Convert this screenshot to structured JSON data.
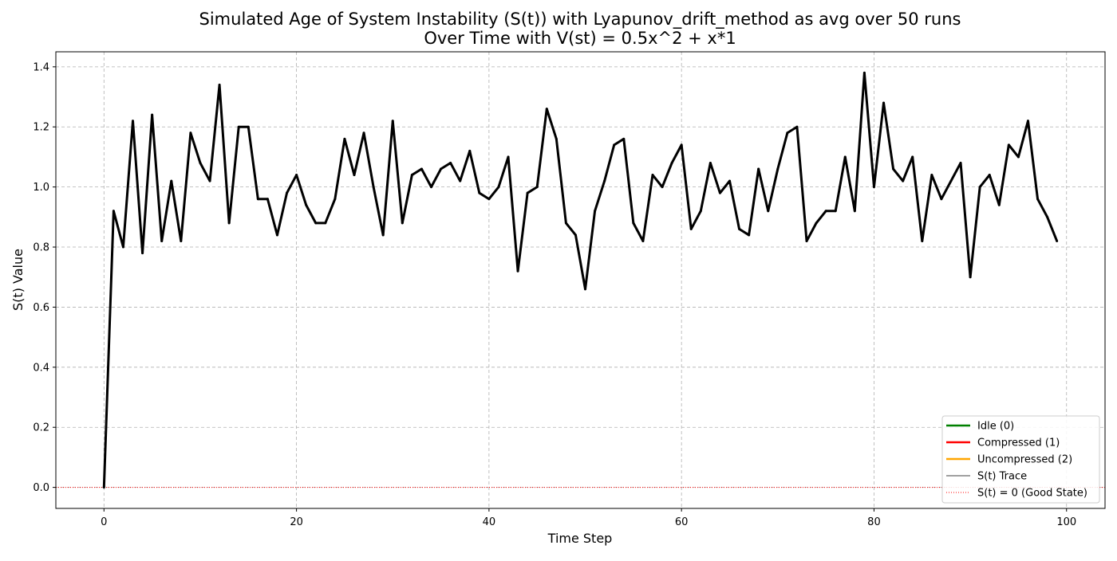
{
  "chart_data": {
    "type": "line",
    "title_line1": "Simulated Age of System Instability (S(t)) with Lyapunov_drift_method as avg over 50 runs",
    "title_line2": "Over Time with V(st) = 0.5x^2 + x*1",
    "xlabel": "Time Step",
    "ylabel": "S(t) Value",
    "xlim": [
      -5,
      104
    ],
    "ylim": [
      -0.07,
      1.45
    ],
    "x_ticks": [
      0,
      20,
      40,
      60,
      80,
      100
    ],
    "y_ticks": [
      0.0,
      0.2,
      0.4,
      0.6,
      0.8,
      1.0,
      1.2,
      1.4
    ],
    "y_tick_labels": [
      "0.0",
      "0.2",
      "0.4",
      "0.6",
      "0.8",
      "1.0",
      "1.2",
      "1.4"
    ],
    "grid": true,
    "legend_position": "bottom-right",
    "series": [
      {
        "name": "S(t) Trace",
        "color": "#000000",
        "x": [
          0,
          1,
          2,
          3,
          4,
          5,
          6,
          7,
          8,
          9,
          10,
          11,
          12,
          13,
          14,
          15,
          16,
          17,
          18,
          19,
          20,
          21,
          22,
          23,
          24,
          25,
          26,
          27,
          28,
          29,
          30,
          31,
          32,
          33,
          34,
          35,
          36,
          37,
          38,
          39,
          40,
          41,
          42,
          43,
          44,
          45,
          46,
          47,
          48,
          49,
          50,
          51,
          52,
          53,
          54,
          55,
          56,
          57,
          58,
          59,
          60,
          61,
          62,
          63,
          64,
          65,
          66,
          67,
          68,
          69,
          70,
          71,
          72,
          73,
          74,
          75,
          76,
          77,
          78,
          79,
          80,
          81,
          82,
          83,
          84,
          85,
          86,
          87,
          88,
          89,
          90,
          91,
          92,
          93,
          94,
          95,
          96,
          97,
          98,
          99
        ],
        "values": [
          0.0,
          0.92,
          0.8,
          1.22,
          0.78,
          1.24,
          0.82,
          1.02,
          0.82,
          1.18,
          1.08,
          1.02,
          1.34,
          0.88,
          1.2,
          1.2,
          0.96,
          0.96,
          0.84,
          0.98,
          1.04,
          0.94,
          0.88,
          0.88,
          0.96,
          1.16,
          1.04,
          1.18,
          1.0,
          0.84,
          1.22,
          0.88,
          1.04,
          1.06,
          1.0,
          1.06,
          1.08,
          1.02,
          1.12,
          0.98,
          0.96,
          1.0,
          1.1,
          0.72,
          0.98,
          1.0,
          1.26,
          1.16,
          0.88,
          0.84,
          0.66,
          0.92,
          1.02,
          1.14,
          1.16,
          0.88,
          0.82,
          1.04,
          1.0,
          1.08,
          1.14,
          0.86,
          0.92,
          1.08,
          0.98,
          1.02,
          0.86,
          0.84,
          1.06,
          0.92,
          1.06,
          1.18,
          1.2,
          0.82,
          0.88,
          0.92,
          0.92,
          1.1,
          0.92,
          1.38,
          1.0,
          1.28,
          1.06,
          1.02,
          1.1,
          0.82,
          1.04,
          0.96,
          1.02,
          1.08,
          0.7,
          1.0,
          1.04,
          0.94,
          1.14,
          1.1,
          1.22,
          0.96,
          0.9,
          0.82
        ]
      }
    ],
    "reference_line": {
      "label": "S(t) = 0 (Good State)",
      "value": 0.0,
      "color": "#ff0000",
      "style": "dotted"
    },
    "legend": [
      {
        "label": "Idle (0)",
        "color": "#008000",
        "style": "solid"
      },
      {
        "label": "Compressed (1)",
        "color": "#ff0000",
        "style": "solid"
      },
      {
        "label": "Uncompressed (2)",
        "color": "#ffa500",
        "style": "solid"
      },
      {
        "label": "S(t) Trace",
        "color": "#000000",
        "style": "thin"
      },
      {
        "label": "S(t) = 0 (Good State)",
        "color": "#ff0000",
        "style": "dotted"
      }
    ]
  }
}
